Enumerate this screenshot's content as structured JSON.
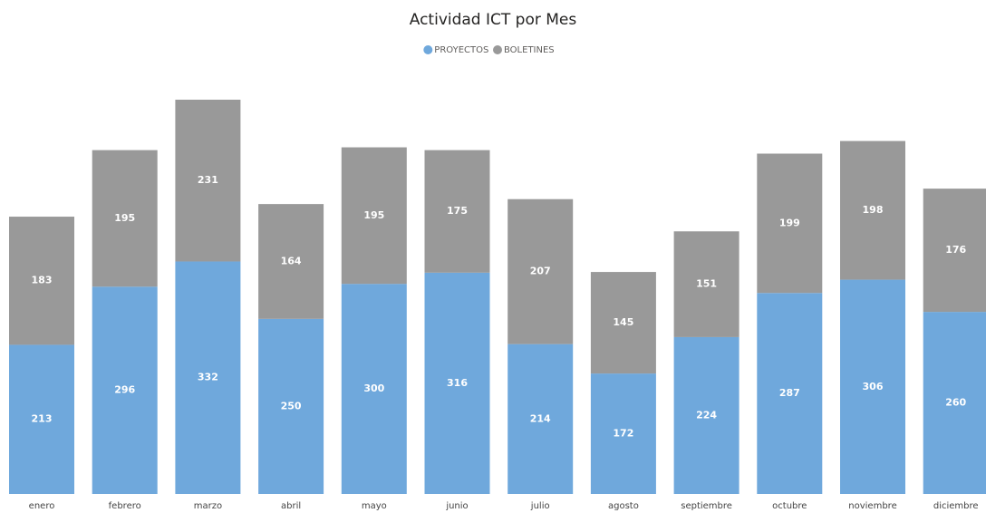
{
  "chart_data": {
    "type": "stacked_bar",
    "title": "Actividad ICT por Mes",
    "categories": [
      "enero",
      "febrero",
      "marzo",
      "abril",
      "mayo",
      "junio",
      "julio",
      "agosto",
      "septiembre",
      "octubre",
      "noviembre",
      "diciembre"
    ],
    "series": [
      {
        "name": "PROYECTOS",
        "color": "#6fa8dc",
        "values": [
          213,
          296,
          332,
          250,
          300,
          316,
          214,
          172,
          224,
          287,
          306,
          260
        ]
      },
      {
        "name": "BOLETINES",
        "color": "#999999",
        "values": [
          183,
          195,
          231,
          164,
          195,
          175,
          207,
          145,
          151,
          199,
          198,
          176
        ]
      }
    ],
    "legend": "top"
  }
}
